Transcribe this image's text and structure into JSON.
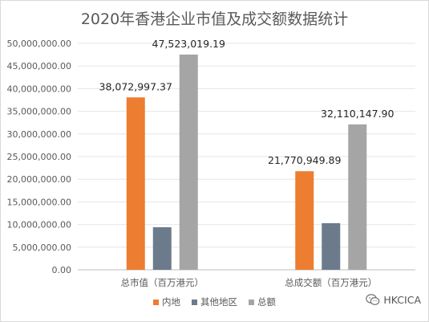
{
  "chart_data": {
    "type": "bar",
    "title": "2020年香港企业市值及成交额数据统计",
    "categories": [
      "总市值（百万港元）",
      "总成交额（百万港元）"
    ],
    "series": [
      {
        "name": "内地",
        "color": "#ed7d31",
        "values": [
          38072997.37,
          21770949.89
        ],
        "labels": [
          "38,072,997.37",
          "21,770,949.89"
        ]
      },
      {
        "name": "其他地区",
        "color": "#6b7b8c",
        "values": [
          9400000,
          10300000
        ],
        "labels": [
          "",
          ""
        ]
      },
      {
        "name": "总额",
        "color": "#a5a5a5",
        "values": [
          47523019.19,
          32110147.9
        ],
        "labels": [
          "47,523,019.19",
          "32,110,147.90"
        ]
      }
    ],
    "ylim": [
      0,
      50000000
    ],
    "yticks": [
      0,
      5000000,
      10000000,
      15000000,
      20000000,
      25000000,
      30000000,
      35000000,
      40000000,
      45000000,
      50000000
    ],
    "ytick_labels": [
      "0.00",
      "5,000,000.00",
      "10,000,000.00",
      "15,000,000.00",
      "20,000,000.00",
      "25,000,000.00",
      "30,000,000.00",
      "35,000,000.00",
      "40,000,000.00",
      "45,000,000.00",
      "50,000,000.00"
    ],
    "grid": true,
    "legend": "bottom"
  },
  "watermark": {
    "text": "HKCICA",
    "icon": "wechat-icon"
  }
}
